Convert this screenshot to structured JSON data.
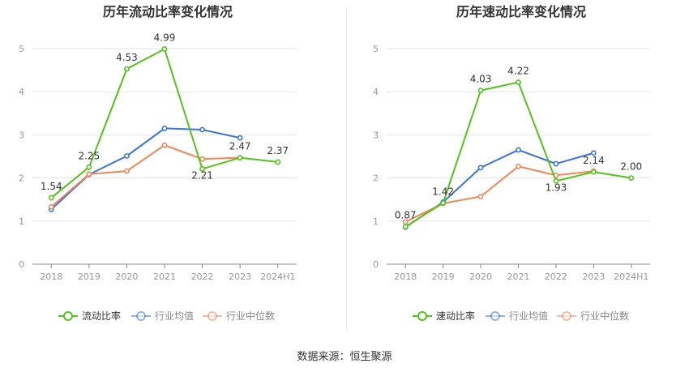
{
  "footer": {
    "source_label": "数据来源：恒生聚源"
  },
  "colors": {
    "green": "#52c41a",
    "blue": "#3b74d8",
    "orange": "#f0875a",
    "axis": "#999999",
    "grid": "#e6e6e6",
    "text": "#333333"
  },
  "chart_data": [
    {
      "type": "line",
      "title": "历年流动比率变化情况",
      "categories": [
        "2018",
        "2019",
        "2020",
        "2021",
        "2022",
        "2023",
        "2024H1"
      ],
      "ylim": [
        0,
        5
      ],
      "yticks": [
        0,
        1,
        2,
        3,
        4,
        5
      ],
      "grid": true,
      "legend": "bottom",
      "series": [
        {
          "name": "流动比率",
          "color": "#52c41a",
          "values": [
            1.54,
            2.25,
            4.53,
            4.99,
            2.21,
            2.47,
            2.37
          ],
          "labels": [
            "1.54",
            "2.25",
            "4.53",
            "4.99",
            "2.21",
            "2.47",
            "2.37"
          ]
        },
        {
          "name": "行业均值",
          "color": "#3b74d8",
          "values": [
            1.27,
            2.08,
            2.51,
            3.15,
            3.12,
            2.93,
            null
          ]
        },
        {
          "name": "行业中位数",
          "color": "#f0875a",
          "values": [
            1.33,
            2.09,
            2.16,
            2.76,
            2.44,
            2.47,
            null
          ]
        }
      ]
    },
    {
      "type": "line",
      "title": "历年速动比率变化情况",
      "categories": [
        "2018",
        "2019",
        "2020",
        "2021",
        "2022",
        "2023",
        "2024H1"
      ],
      "ylim": [
        0,
        5
      ],
      "yticks": [
        0,
        1,
        2,
        3,
        4,
        5
      ],
      "grid": true,
      "legend": "bottom",
      "series": [
        {
          "name": "速动比率",
          "color": "#52c41a",
          "values": [
            0.87,
            1.42,
            4.03,
            4.22,
            1.93,
            2.14,
            2.0
          ],
          "labels": [
            "0.87",
            "1.42",
            "4.03",
            "4.22",
            "1.93",
            "2.14",
            "2.00"
          ]
        },
        {
          "name": "行业均值",
          "color": "#3b74d8",
          "values": [
            0.86,
            1.44,
            2.24,
            2.65,
            2.33,
            2.58,
            null
          ]
        },
        {
          "name": "行业中位数",
          "color": "#f0875a",
          "values": [
            0.98,
            1.41,
            1.57,
            2.27,
            2.06,
            2.16,
            null
          ]
        }
      ]
    }
  ]
}
